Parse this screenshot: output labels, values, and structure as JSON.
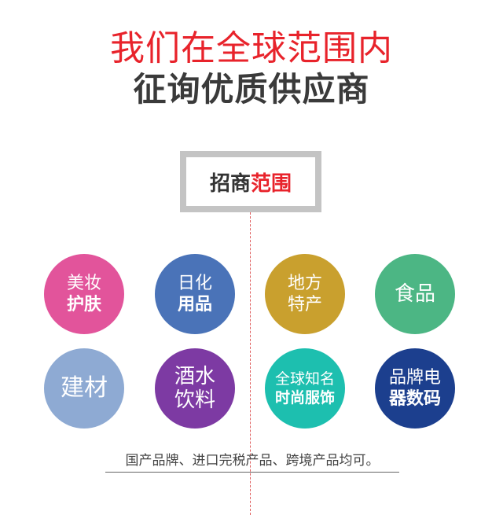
{
  "header": {
    "line1": "我们在全球范围内",
    "line2": "征询优质供应商"
  },
  "section": {
    "label_prefix": "招商",
    "label_accent": "范围"
  },
  "categories": [
    {
      "line1": "美妆",
      "line2": "护肤",
      "color": "#e2549b"
    },
    {
      "line1": "日化",
      "line2": "用品",
      "color": "#4a73b8"
    },
    {
      "line1": "地方",
      "line2": "特产",
      "color": "#c9a02e"
    },
    {
      "line1": "食品",
      "color": "#4cb684"
    },
    {
      "line1": "建材",
      "color": "#8eaad3"
    },
    {
      "line1": "酒水",
      "line2": "饮料",
      "color": "#7d3aa3"
    },
    {
      "line1": "全球知名",
      "line2": "时尚服饰",
      "color": "#1dbfaf"
    },
    {
      "line1": "品牌电",
      "line2": "器数码",
      "color": "#1c3f8e"
    }
  ],
  "footnote": "国产品牌、进口完税产品、跨境产品均可。"
}
